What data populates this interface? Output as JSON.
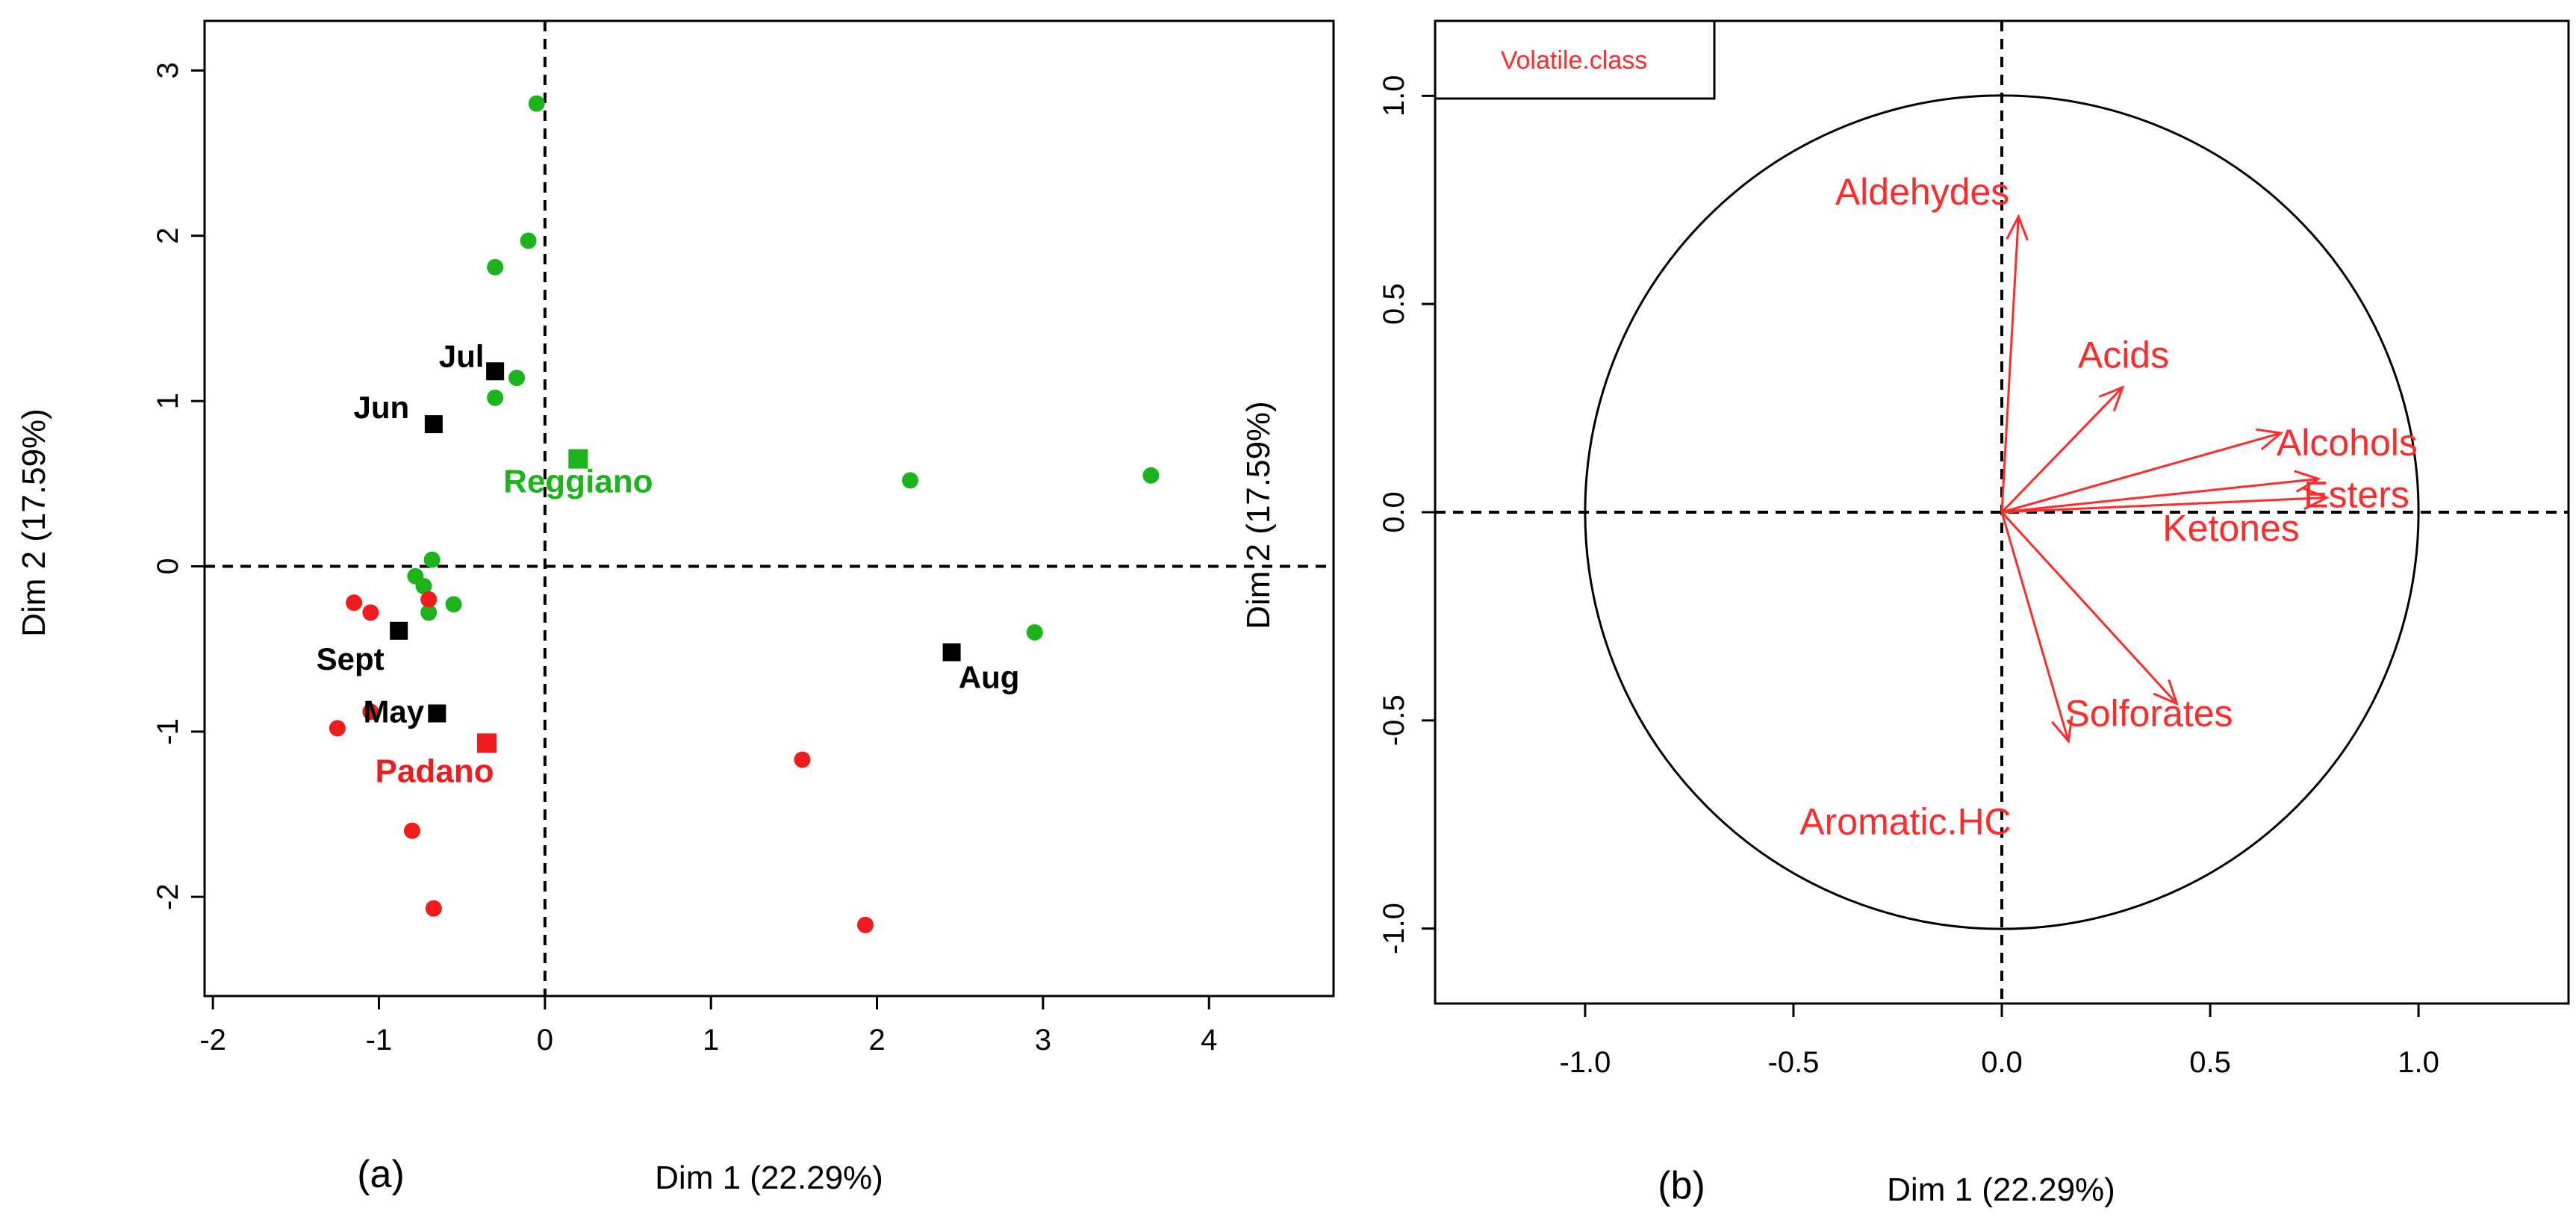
{
  "colors": {
    "padano": "#ee1c1c",
    "reggiano": "#1db31d",
    "month": "#000000",
    "arrow": "#ff2b2b",
    "axis": "#000000"
  },
  "chart_data": [
    {
      "type": "scatter",
      "panel_label": "(a)",
      "xlabel": "Dim 1 (22.29%)",
      "ylabel": "Dim 2 (17.59%)",
      "xlim": [
        -2.05,
        4.75
      ],
      "ylim": [
        -2.6,
        3.3
      ],
      "xticks": [
        -2,
        -1,
        0,
        1,
        2,
        3,
        4
      ],
      "yticks": [
        -2,
        -1,
        0,
        1,
        2,
        3
      ],
      "series": [
        {
          "name": "Reggiano",
          "color": "#1db31d",
          "points": [
            [
              -0.05,
              2.8
            ],
            [
              -0.1,
              1.97
            ],
            [
              -0.3,
              1.81
            ],
            [
              -0.17,
              1.14
            ],
            [
              -0.3,
              1.02
            ],
            [
              2.2,
              0.52
            ],
            [
              3.65,
              0.55
            ],
            [
              2.95,
              -0.4
            ],
            [
              -0.68,
              0.04
            ],
            [
              -0.78,
              -0.06
            ],
            [
              -0.73,
              -0.12
            ],
            [
              -0.55,
              -0.23
            ],
            [
              -0.7,
              -0.28
            ]
          ]
        },
        {
          "name": "Padano",
          "color": "#ee1c1c",
          "points": [
            [
              -1.15,
              -0.22
            ],
            [
              -1.05,
              -0.28
            ],
            [
              -0.7,
              -0.2
            ],
            [
              -1.25,
              -0.98
            ],
            [
              -1.05,
              -0.88
            ],
            [
              -0.8,
              -1.6
            ],
            [
              -0.67,
              -2.07
            ],
            [
              1.55,
              -1.17
            ],
            [
              1.93,
              -2.17
            ]
          ]
        }
      ],
      "group_centroids": [
        {
          "name": "Reggiano",
          "x": 0.2,
          "y": 0.65,
          "label": "Reggiano"
        },
        {
          "name": "Padano",
          "x": -0.35,
          "y": -1.07,
          "label": "Padano"
        }
      ],
      "month_centroids": [
        {
          "label": "Jul",
          "x": -0.3,
          "y": 1.18
        },
        {
          "label": "Jun",
          "x": -0.67,
          "y": 0.86
        },
        {
          "label": "Sept",
          "x": -0.88,
          "y": -0.39
        },
        {
          "label": "May",
          "x": -0.65,
          "y": -0.89
        },
        {
          "label": "Aug",
          "x": 2.45,
          "y": -0.52
        }
      ],
      "reference_lines": {
        "x": 0,
        "y": 0
      }
    },
    {
      "type": "scatter",
      "subtype": "correlation-circle",
      "panel_label": "(b)",
      "xlabel": "Dim 1 (22.29%)",
      "ylabel": "Dim 2 (17.59%)",
      "xlim": [
        -1.36,
        1.36
      ],
      "ylim": [
        -1.18,
        1.18
      ],
      "xticks": [
        -1.0,
        -0.5,
        0.0,
        0.5,
        1.0
      ],
      "xtick_labels": [
        "-1.0",
        "-0.5",
        "0.0",
        "0.5",
        "1.0"
      ],
      "yticks": [
        -1.0,
        -0.5,
        0.0,
        0.5,
        1.0
      ],
      "ytick_labels": [
        "-1.0",
        "-0.5",
        "0.0",
        "0.5",
        "1.0"
      ],
      "legend": {
        "title": "Volatile.class",
        "position": "top-left"
      },
      "circle_radius": 1.0,
      "variables": [
        {
          "label": "Aldehydes",
          "x": 0.04,
          "y": 0.71
        },
        {
          "label": "Acids",
          "x": 0.29,
          "y": 0.3
        },
        {
          "label": "Alcohols",
          "x": 0.67,
          "y": 0.19
        },
        {
          "label": "Esters",
          "x": 0.76,
          "y": 0.08
        },
        {
          "label": "Ketones",
          "x": 0.78,
          "y": 0.035
        },
        {
          "label": "Solforates",
          "x": 0.42,
          "y": -0.46
        },
        {
          "label": "Aromatic.HC",
          "x": 0.16,
          "y": -0.55
        }
      ]
    }
  ]
}
